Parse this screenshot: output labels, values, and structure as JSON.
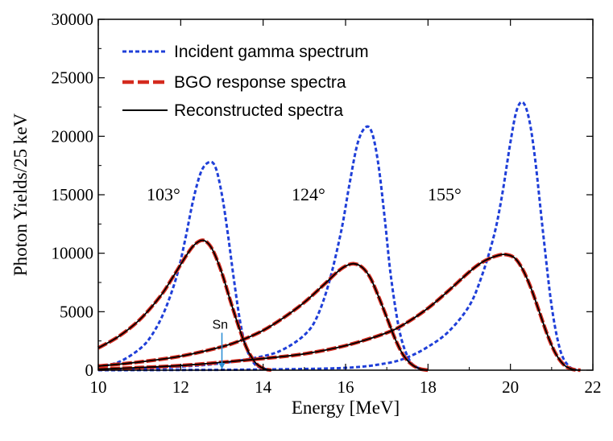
{
  "chart_data": {
    "type": "line",
    "title": "",
    "xlabel": "Energy [MeV]",
    "ylabel": "Photon Yields/25 keV",
    "xlim": [
      10,
      22
    ],
    "ylim": [
      0,
      30000
    ],
    "x_ticks": [
      10,
      12,
      14,
      16,
      18,
      20,
      22
    ],
    "y_ticks": [
      0,
      5000,
      10000,
      15000,
      20000,
      25000,
      30000
    ],
    "x_tick_labels": [
      "10",
      "12",
      "14",
      "16",
      "18",
      "20",
      "22"
    ],
    "y_tick_labels": [
      "0",
      "5000",
      "10000",
      "15000",
      "20000",
      "25000",
      "30000"
    ],
    "legend": [
      {
        "label": "Incident gamma spectrum",
        "color": "#1f3fd8",
        "style": "dotted"
      },
      {
        "label": "BGO response spectra",
        "color": "#d42a1e",
        "style": "dashed"
      },
      {
        "label": "Reconstructed spectra",
        "color": "#000000",
        "style": "solid"
      }
    ],
    "annotations": [
      {
        "text": "103°",
        "x": 11.9,
        "y": 15000
      },
      {
        "text": "124°",
        "x": 15.3,
        "y": 15000
      },
      {
        "text": "155°",
        "x": 18.8,
        "y": 15000
      }
    ],
    "sn_marker": {
      "text": "Sn",
      "x": 13.0,
      "y_top": 3200
    },
    "series": [
      {
        "name": "Incident gamma spectrum 103°",
        "kind": "incident",
        "x": [
          10.0,
          10.5,
          11.0,
          11.3,
          11.6,
          11.9,
          12.1,
          12.3,
          12.5,
          12.7,
          12.85,
          13.0,
          13.15,
          13.3,
          13.45,
          13.6,
          13.8,
          14.0,
          14.2
        ],
        "y": [
          300,
          700,
          1800,
          3000,
          5000,
          8000,
          11000,
          14500,
          17000,
          17800,
          17300,
          15000,
          11500,
          7500,
          4000,
          1800,
          500,
          150,
          0
        ]
      },
      {
        "name": "Incident gamma spectrum 124°",
        "kind": "incident",
        "x": [
          10.0,
          11.0,
          12.0,
          13.0,
          14.0,
          14.5,
          15.0,
          15.3,
          15.6,
          15.9,
          16.1,
          16.3,
          16.5,
          16.65,
          16.8,
          16.95,
          17.1,
          17.3,
          17.5,
          17.7,
          18.0
        ],
        "y": [
          50,
          150,
          300,
          600,
          1200,
          1800,
          3000,
          4500,
          7500,
          12000,
          16000,
          19500,
          20800,
          20200,
          17500,
          13000,
          8000,
          3500,
          1200,
          300,
          0
        ]
      },
      {
        "name": "Incident gamma spectrum 155°",
        "kind": "incident",
        "x": [
          10.0,
          12.0,
          14.0,
          16.0,
          17.0,
          17.5,
          18.0,
          18.5,
          19.0,
          19.3,
          19.6,
          19.8,
          20.0,
          20.15,
          20.3,
          20.45,
          20.6,
          20.8,
          21.0,
          21.2,
          21.4,
          21.6
        ],
        "y": [
          0,
          20,
          60,
          200,
          600,
          1100,
          2000,
          3300,
          5500,
          8000,
          11500,
          15000,
          19500,
          22200,
          22900,
          21500,
          18000,
          11500,
          5500,
          1800,
          400,
          0
        ]
      },
      {
        "name": "BGO response spectra 103°",
        "kind": "bgo",
        "x": [
          10.0,
          10.5,
          11.0,
          11.5,
          11.8,
          12.1,
          12.3,
          12.5,
          12.65,
          12.8,
          13.0,
          13.2,
          13.4,
          13.6,
          13.8,
          14.0,
          14.2
        ],
        "y": [
          1900,
          2900,
          4300,
          6300,
          7900,
          9600,
          10600,
          11100,
          10900,
          10100,
          8300,
          6000,
          3800,
          1900,
          700,
          150,
          0
        ]
      },
      {
        "name": "BGO response spectra 124°",
        "kind": "bgo",
        "x": [
          10.0,
          11.0,
          12.0,
          13.0,
          13.5,
          14.0,
          14.5,
          15.0,
          15.5,
          15.8,
          16.0,
          16.2,
          16.4,
          16.6,
          16.8,
          17.0,
          17.2,
          17.4,
          17.6,
          17.8,
          18.0
        ],
        "y": [
          350,
          700,
          1200,
          2000,
          2600,
          3400,
          4500,
          5800,
          7400,
          8400,
          8900,
          9100,
          8800,
          7900,
          6300,
          4500,
          2700,
          1300,
          500,
          120,
          0
        ]
      },
      {
        "name": "BGO response spectra 155°",
        "kind": "bgo",
        "x": [
          10.0,
          12.0,
          14.0,
          15.0,
          16.0,
          17.0,
          17.5,
          18.0,
          18.5,
          19.0,
          19.3,
          19.6,
          19.85,
          20.1,
          20.3,
          20.5,
          20.7,
          20.9,
          21.1,
          21.3,
          21.5,
          21.7
        ],
        "y": [
          80,
          400,
          1000,
          1400,
          2100,
          3200,
          4100,
          5300,
          6800,
          8400,
          9200,
          9700,
          9900,
          9600,
          8600,
          7000,
          5000,
          3000,
          1400,
          450,
          80,
          0
        ]
      },
      {
        "name": "Reconstructed spectra 103°",
        "kind": "reconstructed",
        "x": [
          10.0,
          10.5,
          11.0,
          11.5,
          11.8,
          12.1,
          12.3,
          12.5,
          12.65,
          12.8,
          13.0,
          13.2,
          13.4,
          13.6,
          13.8,
          14.0,
          14.2
        ],
        "y": [
          1900,
          2900,
          4300,
          6300,
          7900,
          9600,
          10600,
          11100,
          10900,
          10100,
          8300,
          6000,
          3800,
          1900,
          700,
          150,
          0
        ]
      },
      {
        "name": "Reconstructed spectra 124°",
        "kind": "reconstructed",
        "x": [
          10.0,
          11.0,
          12.0,
          13.0,
          13.5,
          14.0,
          14.5,
          15.0,
          15.5,
          15.8,
          16.0,
          16.2,
          16.4,
          16.6,
          16.8,
          17.0,
          17.2,
          17.4,
          17.6,
          17.8,
          18.0
        ],
        "y": [
          350,
          700,
          1200,
          2000,
          2600,
          3400,
          4500,
          5800,
          7400,
          8400,
          8900,
          9100,
          8800,
          7900,
          6300,
          4500,
          2700,
          1300,
          500,
          120,
          0
        ]
      },
      {
        "name": "Reconstructed spectra 155°",
        "kind": "reconstructed",
        "x": [
          10.0,
          12.0,
          14.0,
          15.0,
          16.0,
          17.0,
          17.5,
          18.0,
          18.5,
          19.0,
          19.3,
          19.6,
          19.85,
          20.1,
          20.3,
          20.5,
          20.7,
          20.9,
          21.1,
          21.3,
          21.5,
          21.7
        ],
        "y": [
          80,
          400,
          1000,
          1400,
          2100,
          3200,
          4100,
          5300,
          6800,
          8400,
          9200,
          9700,
          9900,
          9600,
          8600,
          7000,
          5000,
          3000,
          1400,
          450,
          80,
          0
        ]
      }
    ]
  }
}
